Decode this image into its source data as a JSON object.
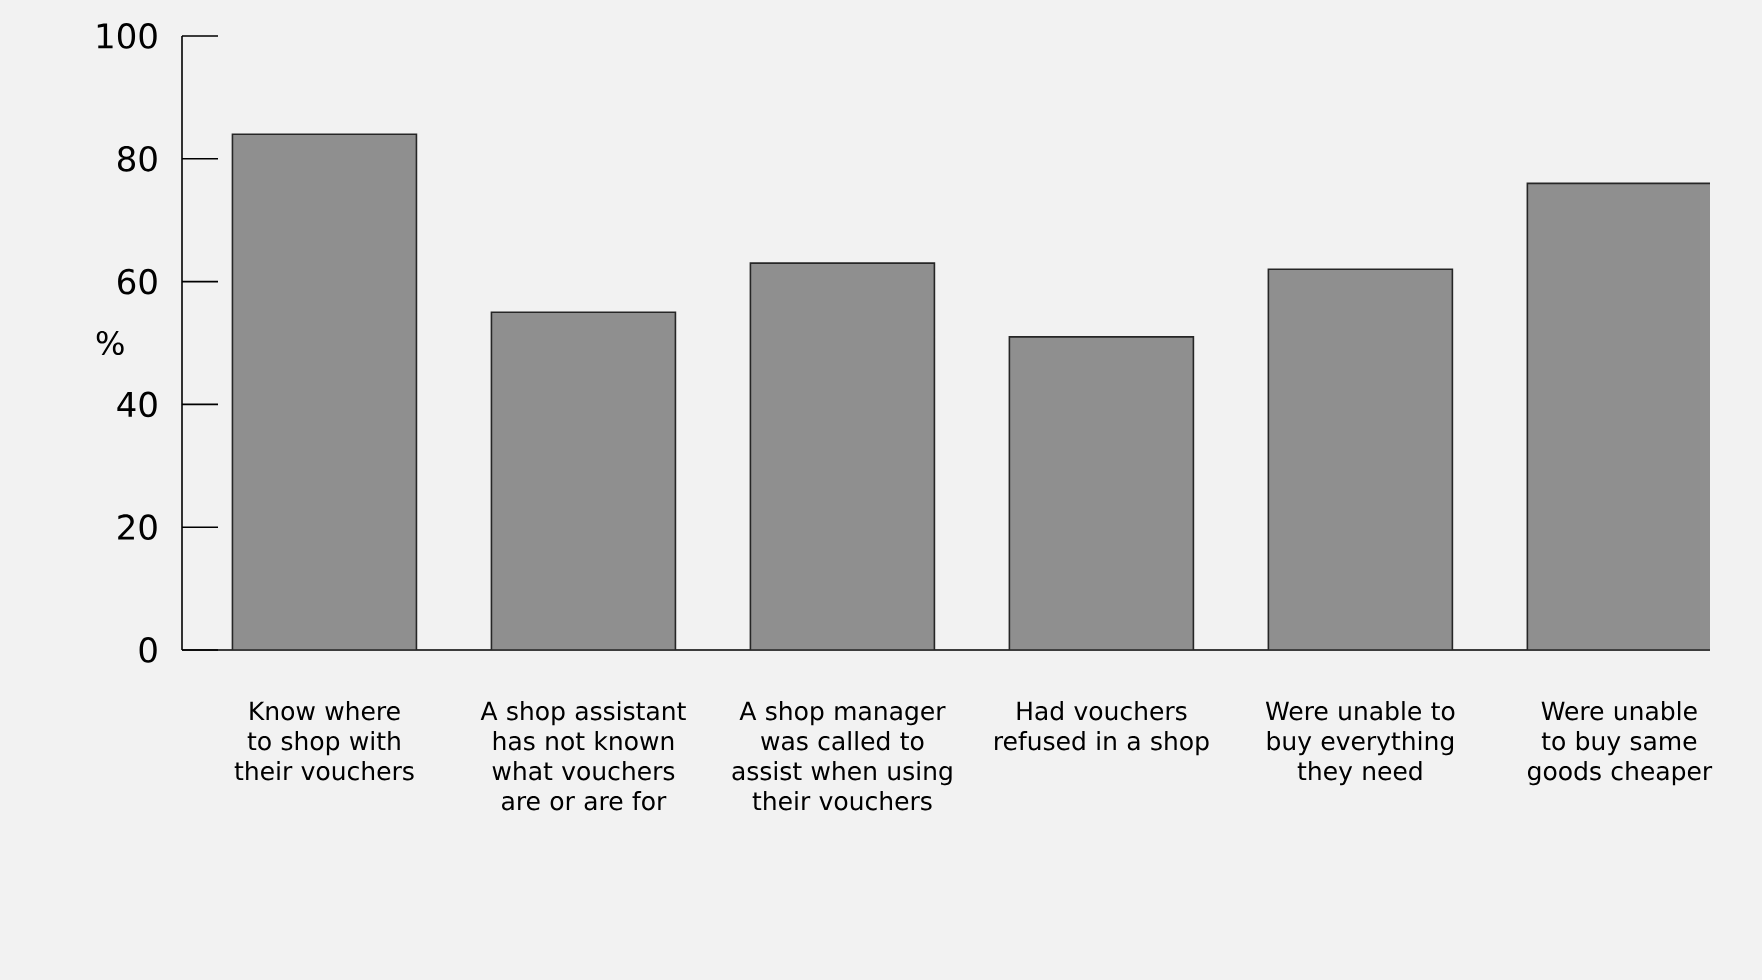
{
  "chart_data": {
    "type": "bar",
    "ylabel": "%",
    "categories": [
      "Know where to shop with their vouchers",
      "A shop assistant has not known what vouchers are or are for",
      "A shop manager was called to assist when using their vouchers",
      "Had vouchers refused in a shop",
      "Were unable to buy everything they need",
      "Were unable to buy same goods cheaper"
    ],
    "values": [
      84,
      55,
      63,
      51,
      62,
      76
    ],
    "color": "#8f8f8f",
    "ylim": [
      0,
      100
    ],
    "yticks": [
      0,
      20,
      40,
      60,
      80,
      100
    ],
    "grid": false
  }
}
